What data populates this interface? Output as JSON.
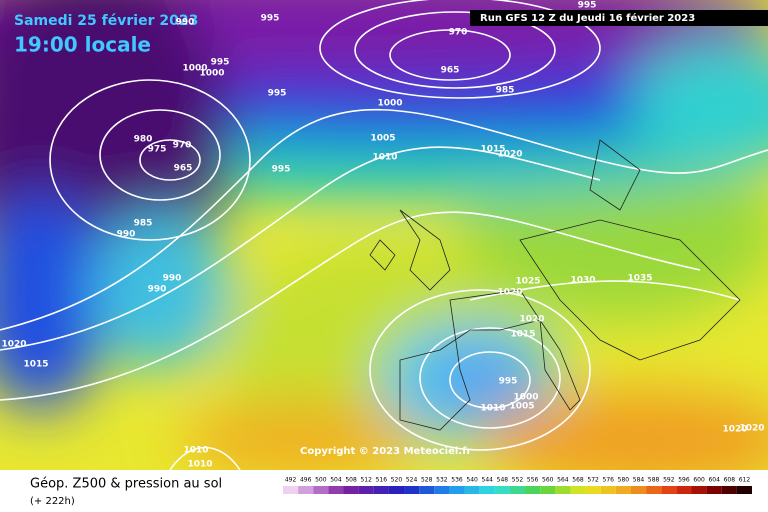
{
  "header": {
    "date": "Samedi 25 février 2023",
    "time": "19:00 locale",
    "run": "Run GFS 12 Z du Jeudi 16 février 2023"
  },
  "copyright": "Copyright © 2023 Meteociel.fr",
  "footer": {
    "title": "Géop. Z500 & pression au sol",
    "lead": "(+ 222h)"
  },
  "isobar_labels": [
    990,
    995,
    995,
    1000,
    1000,
    995,
    970,
    965,
    985,
    995,
    1000,
    1005,
    1010,
    980,
    975,
    970,
    965,
    995,
    985,
    990,
    990,
    990,
    1015,
    1020,
    1025,
    1030,
    1035,
    1020,
    1020,
    1015,
    995,
    1000,
    1005,
    1010,
    1020,
    1015,
    1010,
    1010,
    1020,
    1020
  ],
  "colorbar": [
    492,
    496,
    500,
    504,
    508,
    512,
    516,
    520,
    524,
    528,
    532,
    536,
    540,
    544,
    548,
    552,
    556,
    560,
    564,
    568,
    572,
    576,
    580,
    584,
    588,
    592,
    596,
    600,
    604,
    608,
    612
  ]
}
